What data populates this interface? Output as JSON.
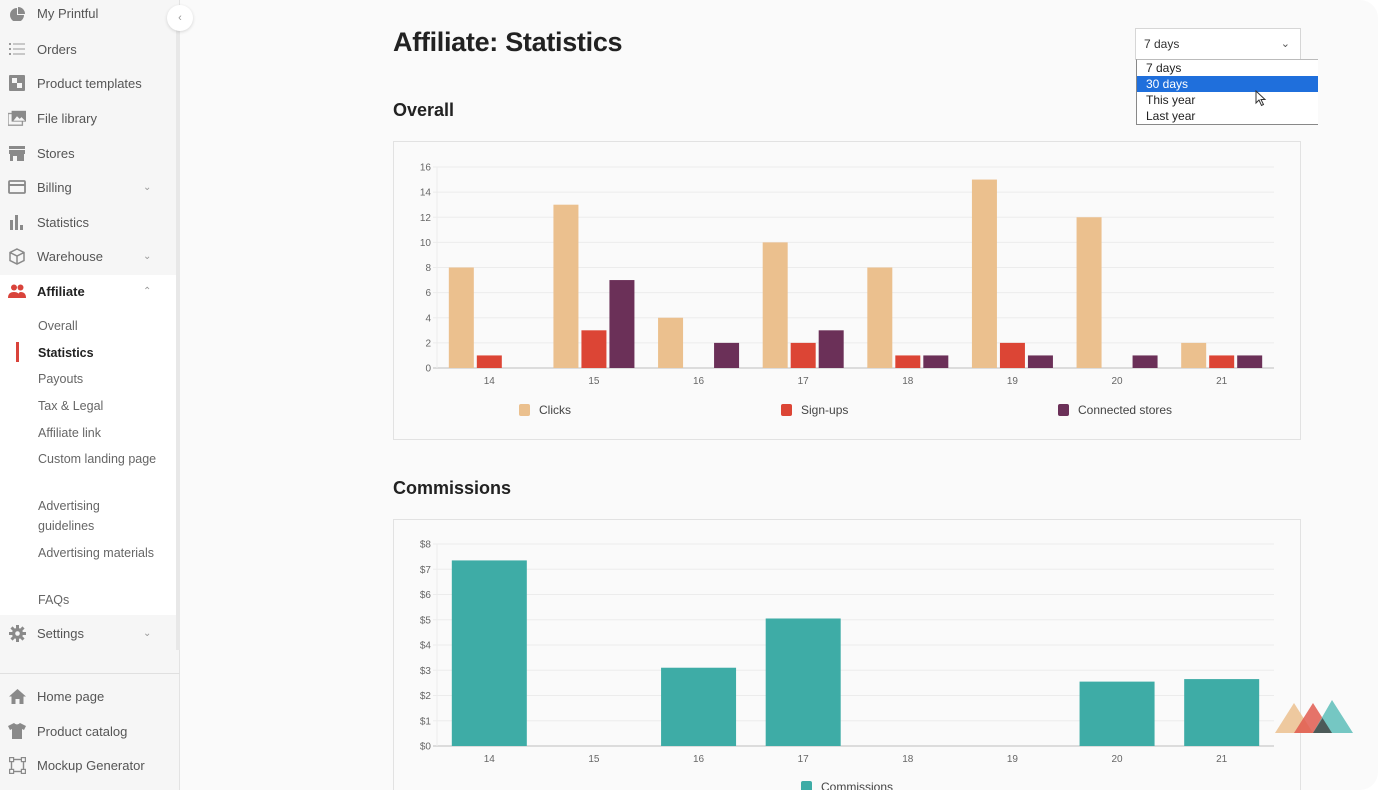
{
  "sidebar": {
    "items": [
      {
        "label": "My Printful",
        "icon": "pie-chart-icon"
      },
      {
        "label": "Orders",
        "icon": "list-icon"
      },
      {
        "label": "Product templates",
        "icon": "template-icon"
      },
      {
        "label": "File library",
        "icon": "images-icon"
      },
      {
        "label": "Stores",
        "icon": "store-icon"
      },
      {
        "label": "Billing",
        "icon": "credit-card-icon",
        "expandable": true
      },
      {
        "label": "Statistics",
        "icon": "bar-chart-icon"
      },
      {
        "label": "Warehouse",
        "icon": "box-icon",
        "expandable": true
      },
      {
        "label": "Affiliate",
        "icon": "users-icon",
        "expandable": true,
        "expanded": true
      }
    ],
    "affiliate_sub": [
      {
        "label": "Overall"
      },
      {
        "label": "Statistics",
        "active": true
      },
      {
        "label": "Payouts"
      },
      {
        "label": "Tax & Legal"
      },
      {
        "label": "Affiliate link"
      },
      {
        "label": "Custom landing page"
      },
      {
        "label": "Advertising guidelines"
      },
      {
        "label": "Advertising materials"
      },
      {
        "label": "FAQs"
      }
    ],
    "settings": {
      "label": "Settings",
      "icon": "gear-icon"
    },
    "bottom": [
      {
        "label": "Home page",
        "icon": "home-icon"
      },
      {
        "label": "Product catalog",
        "icon": "tshirt-icon"
      },
      {
        "label": "Mockup Generator",
        "icon": "mockup-icon"
      }
    ],
    "collapse_glyph": "‹"
  },
  "header": {
    "title": "Affiliate: Statistics"
  },
  "period_select": {
    "value": "7 days",
    "options": [
      "7 days",
      "30 days",
      "This year",
      "Last year"
    ],
    "highlighted": "30 days"
  },
  "sections": {
    "overall": "Overall",
    "commissions": "Commissions"
  },
  "colors": {
    "clicks": "#ebc08e",
    "signups": "#dc4535",
    "stores": "#6b3058",
    "commissions": "#3eaca6",
    "accent": "#d9433b"
  },
  "chart_data": [
    {
      "type": "bar",
      "title": "Overall",
      "categories": [
        "14",
        "15",
        "16",
        "17",
        "18",
        "19",
        "20",
        "21"
      ],
      "series": [
        {
          "name": "Clicks",
          "values": [
            8,
            13,
            4,
            10,
            8,
            15,
            12,
            2
          ]
        },
        {
          "name": "Sign-ups",
          "values": [
            1,
            3,
            0,
            2,
            1,
            2,
            0,
            1
          ]
        },
        {
          "name": "Connected stores",
          "values": [
            0,
            7,
            2,
            3,
            1,
            1,
            1,
            1
          ]
        }
      ],
      "yticks": [
        "0",
        "2",
        "4",
        "6",
        "8",
        "10",
        "12",
        "14",
        "16"
      ],
      "ylim": [
        0,
        16
      ],
      "grid": true,
      "legend": "bottom"
    },
    {
      "type": "bar",
      "title": "Commissions",
      "categories": [
        "14",
        "15",
        "16",
        "17",
        "18",
        "19",
        "20",
        "21"
      ],
      "series": [
        {
          "name": "Commissions",
          "values": [
            7.35,
            0,
            3.1,
            5.05,
            0,
            0,
            2.55,
            2.65
          ]
        }
      ],
      "yticks": [
        "$0",
        "$1",
        "$2",
        "$3",
        "$4",
        "$5",
        "$6",
        "$7",
        "$8"
      ],
      "ylim": [
        0,
        8
      ],
      "grid": true,
      "legend": "bottom"
    }
  ]
}
